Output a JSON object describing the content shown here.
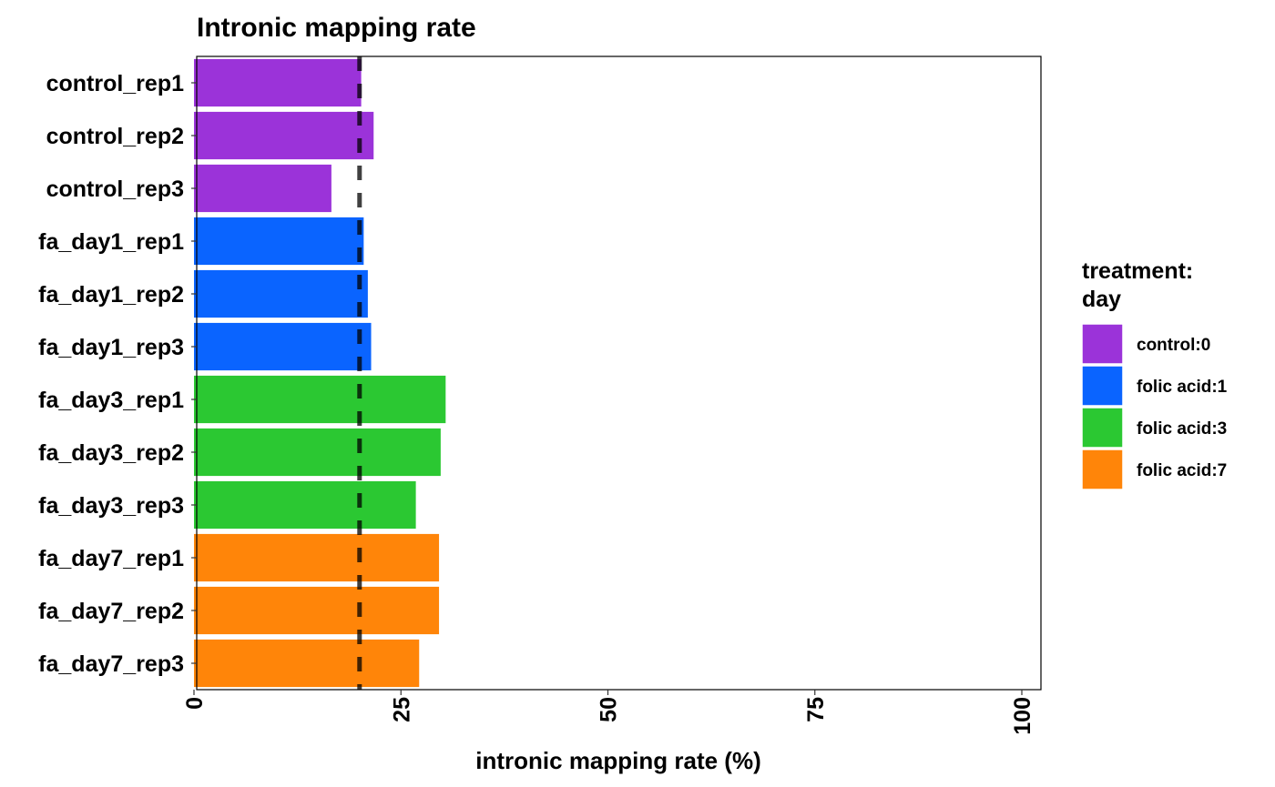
{
  "chart_data": {
    "type": "bar",
    "orientation": "horizontal",
    "title": "Intronic mapping rate",
    "xlabel": "intronic mapping rate (%)",
    "ylabel": "",
    "xlim": [
      0,
      100
    ],
    "xticks": [
      "0",
      "25",
      "50",
      "75",
      "100"
    ],
    "xtick_values": [
      0,
      25,
      50,
      75,
      100
    ],
    "reference_line": {
      "value": 20,
      "style": "dashed",
      "color": "#000000"
    },
    "categories": [
      "control_rep1",
      "control_rep2",
      "control_rep3",
      "fa_day1_rep1",
      "fa_day1_rep2",
      "fa_day1_rep3",
      "fa_day3_rep1",
      "fa_day3_rep2",
      "fa_day3_rep3",
      "fa_day7_rep1",
      "fa_day7_rep2",
      "fa_day7_rep3"
    ],
    "values": [
      20.2,
      21.7,
      16.6,
      20.5,
      21.0,
      21.4,
      30.4,
      29.8,
      26.8,
      29.6,
      29.6,
      27.2
    ],
    "groups": [
      "control:0",
      "control:0",
      "control:0",
      "folic acid:1",
      "folic acid:1",
      "folic acid:1",
      "folic acid:3",
      "folic acid:3",
      "folic acid:3",
      "folic acid:7",
      "folic acid:7",
      "folic acid:7"
    ],
    "legend": {
      "title_lines": [
        "treatment:",
        "day"
      ],
      "placement": "right",
      "entries": [
        {
          "label": "control:0",
          "color": "#9B33D9"
        },
        {
          "label": "folic acid:1",
          "color": "#0A64FF"
        },
        {
          "label": "folic acid:3",
          "color": "#2BC832"
        },
        {
          "label": "folic acid:7",
          "color": "#FF8509"
        }
      ]
    },
    "grid": false
  }
}
